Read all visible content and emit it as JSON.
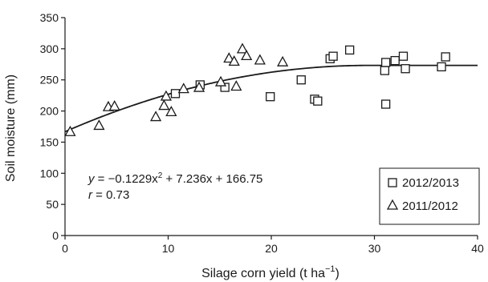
{
  "chart_data": {
    "type": "scatter",
    "title": "",
    "xlabel": "Silage corn yield (t ha",
    "xlabel_sup": "−1",
    "xlabel_close": ")",
    "ylabel": "Soil moisture (mm)",
    "xlim": [
      0,
      40
    ],
    "ylim": [
      0,
      350
    ],
    "x_ticks": [
      0,
      10,
      20,
      30,
      40
    ],
    "y_ticks": [
      0,
      50,
      100,
      150,
      200,
      250,
      300,
      350
    ],
    "grid": false,
    "legend_position": "bottom-right",
    "series": [
      {
        "name": "2012/2013",
        "marker": "square",
        "color": "#1a1a1a",
        "points": [
          [
            10.7,
            228
          ],
          [
            13.1,
            242
          ],
          [
            15.5,
            238
          ],
          [
            19.9,
            223
          ],
          [
            22.9,
            250
          ],
          [
            24.2,
            219
          ],
          [
            24.5,
            216
          ],
          [
            25.7,
            284
          ],
          [
            26.0,
            288
          ],
          [
            27.6,
            298
          ],
          [
            31.0,
            265
          ],
          [
            31.1,
            211
          ],
          [
            31.1,
            278
          ],
          [
            32.0,
            281
          ],
          [
            32.8,
            288
          ],
          [
            33.0,
            268
          ],
          [
            36.5,
            271
          ],
          [
            36.9,
            287
          ]
        ]
      },
      {
        "name": "2011/2012",
        "marker": "triangle",
        "color": "#1a1a1a",
        "points": [
          [
            0.5,
            167
          ],
          [
            3.3,
            177
          ],
          [
            4.2,
            207
          ],
          [
            4.8,
            208
          ],
          [
            8.8,
            191
          ],
          [
            9.6,
            209
          ],
          [
            9.8,
            224
          ],
          [
            10.3,
            199
          ],
          [
            11.5,
            236
          ],
          [
            13.0,
            238
          ],
          [
            15.1,
            247
          ],
          [
            15.9,
            285
          ],
          [
            16.4,
            280
          ],
          [
            16.6,
            240
          ],
          [
            17.2,
            300
          ],
          [
            17.6,
            289
          ],
          [
            18.9,
            282
          ],
          [
            21.1,
            279
          ]
        ]
      }
    ],
    "fit": {
      "a": -0.1229,
      "b": 7.236,
      "c": 166.75,
      "color": "#1a1a1a"
    },
    "equation": {
      "y_var": "y",
      "rhs": " = −0.1229x",
      "sup": "2",
      "rest": " + 7.236x + 166.75",
      "r_var": "r",
      "r_rest": " = 0.73"
    }
  }
}
